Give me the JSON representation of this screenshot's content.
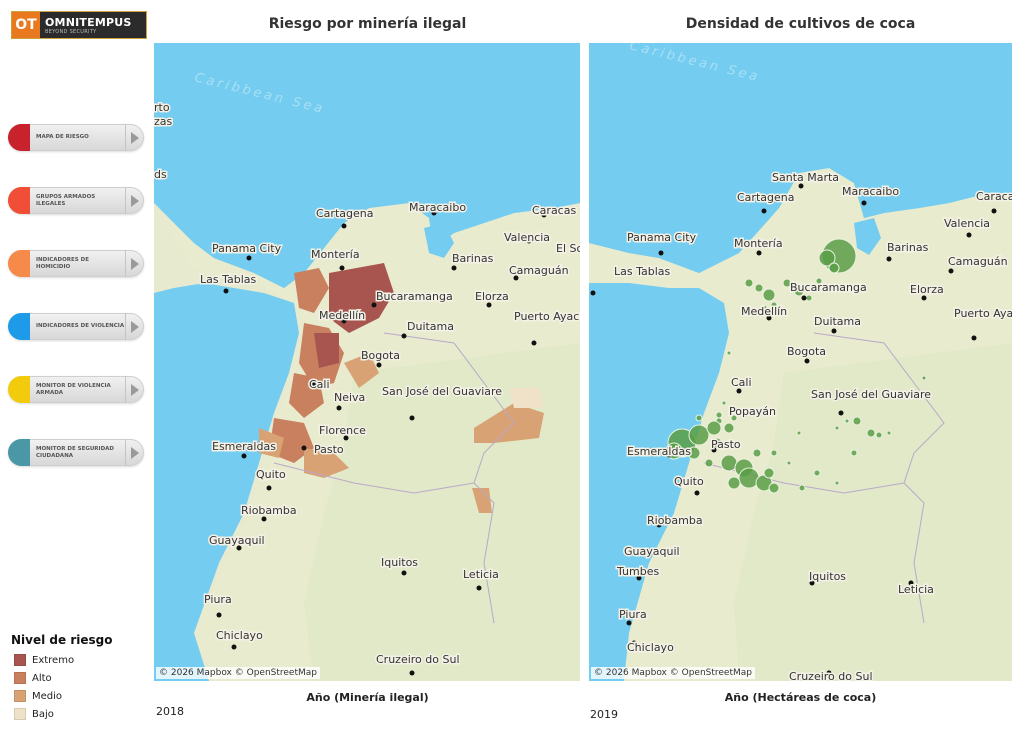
{
  "brand": {
    "mark": "OT",
    "name": "OMNITEMPUS",
    "tagline": "BEYOND SECURITY"
  },
  "sidebar": {
    "items": [
      {
        "label": "MAPA DE RIESGO",
        "color": "#c8232c"
      },
      {
        "label": "GRUPOS ARMADOS ILEGALES",
        "color": "#f04e37"
      },
      {
        "label": "INDICADORES DE HOMICIDIO",
        "color": "#f58a4b"
      },
      {
        "label": "INDICADORES DE VIOLENCIA",
        "color": "#1e9be8"
      },
      {
        "label": "MONITOR DE VIOLENCIA ARMADA",
        "color": "#f2cc0c"
      },
      {
        "label": "MONITOR DE SEGURIDAD CIUDADANA",
        "color": "#4a98a5"
      }
    ]
  },
  "legend": {
    "title": "Nivel de riesgo",
    "items": [
      {
        "label": "Extremo",
        "color": "#a8554f"
      },
      {
        "label": "Alto",
        "color": "#c9805f"
      },
      {
        "label": "Medio",
        "color": "#d9a274"
      },
      {
        "label": "Bajo",
        "color": "#efe2c8"
      }
    ]
  },
  "panels": {
    "left": {
      "title": "Riesgo por minería ilegal",
      "xlabel": "Año (Minería ilegal)",
      "year": "2018",
      "attribution": "© 2026 Mapbox © OpenStreetMap"
    },
    "right": {
      "title": "Densidad de cultivos de coca",
      "xlabel": "Año (Hectáreas de coca)",
      "year": "2019",
      "attribution": "© 2026 Mapbox © OpenStreetMap"
    }
  },
  "map_labels": {
    "sea": "Caribbean Sea",
    "left_cities": [
      "Cartagena",
      "Maracaibo",
      "Caracas",
      "Panama City",
      "Montería",
      "Valencia",
      "El So",
      "Barinas",
      "Camaguán",
      "Las Tablas",
      "Bucaramanga",
      "Elorza",
      "Medellín",
      "Duitama",
      "Puerto Ayacucho",
      "Bogota",
      "Cali",
      "Neiva",
      "San José del Guaviare",
      "Florence",
      "Esmeraldas",
      "Pasto",
      "Quito",
      "Riobamba",
      "Guayaquil",
      "Iquitos",
      "Leticia",
      "Piura",
      "Chiclayo",
      "Cruzeiro do Sul",
      "rto",
      "zas",
      "ds"
    ],
    "right_cities": [
      "Santa Marta",
      "Cartagena",
      "Maracaibo",
      "Caraca",
      "Valencia",
      "Panama City",
      "Montería",
      "Barinas",
      "Camaguán",
      "Las Tablas",
      "Bucaramanga",
      "Elorza",
      "Medellín",
      "Duitama",
      "Puerto Ayacucho",
      "Bogota",
      "Cali",
      "Popayán",
      "San José del Guaviare",
      "Esmeraldas",
      "Pasto",
      "Quito",
      "Riobamba",
      "Guayaquil",
      "Tumbes",
      "Iquitos",
      "Leticia",
      "Piura",
      "Chiclayo",
      "Cruzeiro do Sul"
    ]
  }
}
